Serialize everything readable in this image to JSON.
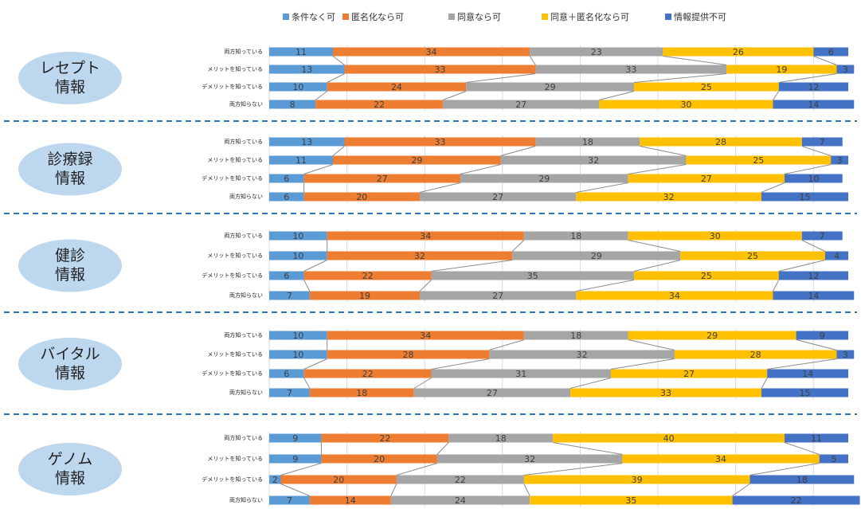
{
  "chart_data": {
    "type": "bar",
    "orientation": "horizontal",
    "stacked": true,
    "xlim": [
      0,
      100
    ],
    "series": [
      {
        "name": "条件なく可",
        "color": "#5b9bd5"
      },
      {
        "name": "匿名化なら可",
        "color": "#ed7d31"
      },
      {
        "name": "同意なら可",
        "color": "#a5a5a5"
      },
      {
        "name": "同意＋匿名化なら可",
        "color": "#ffc000"
      },
      {
        "name": "情報提供不可",
        "color": "#4472c4"
      }
    ],
    "groups": [
      {
        "label": [
          "レセプト",
          "情報"
        ],
        "categories": [
          "両方知っている",
          "メリットを知っている",
          "デメリットを知っている",
          "両方知らない"
        ],
        "values": [
          [
            11,
            13,
            10,
            8
          ],
          [
            34,
            33,
            24,
            22
          ],
          [
            23,
            33,
            29,
            27
          ],
          [
            26,
            19,
            25,
            30
          ],
          [
            6,
            3,
            12,
            14
          ]
        ]
      },
      {
        "label": [
          "診療録",
          "情報"
        ],
        "categories": [
          "両方知っている",
          "メリットを知っている",
          "デメリットを知っている",
          "両方知らない"
        ],
        "values": [
          [
            13,
            11,
            6,
            6
          ],
          [
            33,
            29,
            27,
            20
          ],
          [
            18,
            32,
            29,
            27
          ],
          [
            28,
            25,
            27,
            32
          ],
          [
            7,
            3,
            10,
            15
          ]
        ]
      },
      {
        "label": [
          "健診",
          "情報"
        ],
        "categories": [
          "両方知っている",
          "メリットを知っている",
          "デメリットを知っている",
          "両方知らない"
        ],
        "values": [
          [
            10,
            10,
            6,
            7
          ],
          [
            34,
            32,
            22,
            19
          ],
          [
            18,
            29,
            35,
            27
          ],
          [
            30,
            25,
            25,
            34
          ],
          [
            7,
            4,
            12,
            14
          ]
        ]
      },
      {
        "label": [
          "バイタル",
          "情報"
        ],
        "categories": [
          "両方知っている",
          "メリットを知っている",
          "デメリットを知っている",
          "両方知らない"
        ],
        "values": [
          [
            10,
            10,
            6,
            7
          ],
          [
            34,
            28,
            22,
            18
          ],
          [
            18,
            32,
            31,
            27
          ],
          [
            29,
            28,
            27,
            33
          ],
          [
            9,
            3,
            14,
            15
          ]
        ]
      },
      {
        "label": [
          "ゲノム",
          "情報"
        ],
        "categories": [
          "両方知っている",
          "メリットを知っている",
          "デメリットを知っている",
          "両方知らない"
        ],
        "values": [
          [
            9,
            9,
            2,
            7
          ],
          [
            22,
            20,
            20,
            14
          ],
          [
            18,
            32,
            22,
            24
          ],
          [
            40,
            34,
            39,
            35
          ],
          [
            11,
            5,
            18,
            22
          ]
        ]
      }
    ]
  }
}
